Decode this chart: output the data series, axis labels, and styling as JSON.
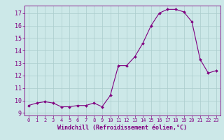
{
  "x": [
    0,
    1,
    2,
    3,
    4,
    5,
    6,
    7,
    8,
    9,
    10,
    11,
    12,
    13,
    14,
    15,
    16,
    17,
    18,
    19,
    20,
    21,
    22,
    23
  ],
  "y": [
    9.6,
    9.8,
    9.9,
    9.8,
    9.5,
    9.5,
    9.6,
    9.6,
    9.8,
    9.5,
    10.4,
    12.8,
    12.8,
    13.5,
    14.6,
    16.0,
    17.0,
    17.3,
    17.3,
    17.1,
    16.3,
    13.3,
    12.2,
    12.4
  ],
  "line_color": "#800080",
  "marker_color": "#800080",
  "bg_color": "#cce8e8",
  "grid_color": "#aacccc",
  "xlabel": "Windchill (Refroidissement éolien,°C)",
  "xlabel_color": "#800080",
  "tick_color": "#800080",
  "ylim": [
    8.8,
    17.6
  ],
  "yticks": [
    9,
    10,
    11,
    12,
    13,
    14,
    15,
    16,
    17
  ],
  "xticks": [
    0,
    1,
    2,
    3,
    4,
    5,
    6,
    7,
    8,
    9,
    10,
    11,
    12,
    13,
    14,
    15,
    16,
    17,
    18,
    19,
    20,
    21,
    22,
    23
  ],
  "spine_color": "#800080",
  "font_size_tick": 5,
  "font_size_xlabel": 6
}
